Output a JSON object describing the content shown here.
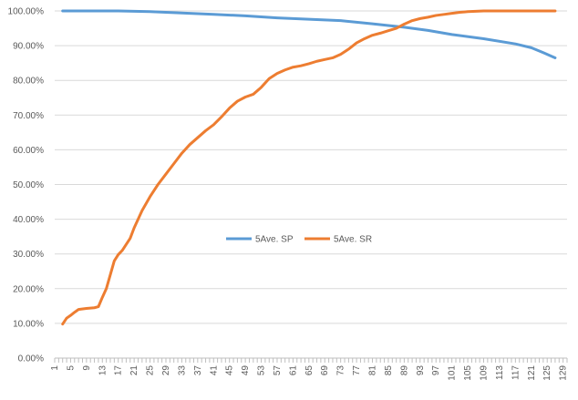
{
  "chart_data": {
    "type": "line",
    "title": "",
    "xlabel": "",
    "ylabel": "",
    "ylim": [
      0,
      100
    ],
    "y_tick_labels": [
      "0.00%",
      "10.00%",
      "20.00%",
      "30.00%",
      "40.00%",
      "50.00%",
      "60.00%",
      "70.00%",
      "80.00%",
      "90.00%",
      "100.00%"
    ],
    "x_range": [
      1,
      130
    ],
    "x_tick_labels": [
      "1",
      "5",
      "9",
      "13",
      "17",
      "21",
      "25",
      "29",
      "33",
      "37",
      "41",
      "45",
      "49",
      "53",
      "57",
      "61",
      "65",
      "69",
      "73",
      "77",
      "81",
      "85",
      "89",
      "93",
      "97",
      "101",
      "105",
      "109",
      "113",
      "117",
      "121",
      "125",
      "129"
    ],
    "grid": "horizontal",
    "legend_position": "center",
    "series": [
      {
        "name": "5Ave. SP",
        "color": "#5B9BD5",
        "x": [
          3,
          10,
          17,
          25,
          33,
          41,
          49,
          57,
          65,
          73,
          81,
          89,
          95,
          101,
          109,
          117,
          121,
          124,
          127
        ],
        "values": [
          100,
          100,
          100,
          99.8,
          99.4,
          99,
          98.6,
          98,
          97.6,
          97.2,
          96.3,
          95.3,
          94.4,
          93.2,
          92,
          90.5,
          89.4,
          88,
          86.5
        ]
      },
      {
        "name": "5Ave. SR",
        "color": "#ED7D31",
        "x": [
          3,
          4,
          5,
          6,
          7,
          9,
          11,
          12,
          13,
          14,
          15,
          16,
          17,
          18,
          20,
          21,
          23,
          25,
          27,
          29,
          31,
          33,
          35,
          37,
          39,
          41,
          43,
          45,
          47,
          49,
          51,
          53,
          55,
          57,
          59,
          61,
          63,
          65,
          67,
          69,
          71,
          73,
          75,
          77,
          79,
          81,
          83,
          85,
          87,
          89,
          91,
          93,
          95,
          97,
          99,
          101,
          103,
          105,
          107,
          109,
          111,
          113,
          115,
          117,
          119,
          121,
          123,
          125,
          127
        ],
        "values": [
          9.8,
          11.5,
          12.3,
          13.2,
          14,
          14.3,
          14.5,
          14.8,
          17.5,
          20,
          24,
          28,
          29.8,
          31,
          34.5,
          37.5,
          42.5,
          46.5,
          50,
          53,
          56,
          59,
          61.5,
          63.5,
          65.5,
          67.2,
          69.5,
          72,
          74,
          75.2,
          76,
          78,
          80.5,
          82,
          83,
          83.8,
          84.2,
          84.8,
          85.5,
          86,
          86.5,
          87.5,
          89,
          90.8,
          92,
          93,
          93.6,
          94.3,
          95,
          96.2,
          97.2,
          97.8,
          98.2,
          98.7,
          99,
          99.3,
          99.6,
          99.8,
          99.9,
          100,
          100,
          100,
          100,
          100,
          100,
          100,
          100,
          100,
          100
        ]
      }
    ]
  }
}
